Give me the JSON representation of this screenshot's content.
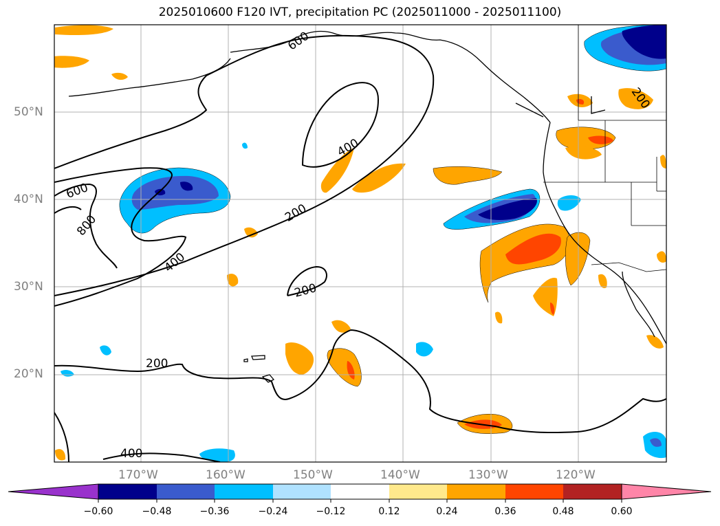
{
  "title": "2025010600 F120 IVT, precipitation PC (2025011000 - 2025011100)",
  "map": {
    "lat_labels": [
      "50°N",
      "40°N",
      "30°N",
      "20°N"
    ],
    "lon_labels": [
      "170°W",
      "160°W",
      "150°W",
      "140°W",
      "130°W",
      "120°W"
    ],
    "contour_labels": [
      "600",
      "800",
      "400",
      "400",
      "200",
      "200",
      "200",
      "400",
      "200",
      "600"
    ]
  },
  "colorbar": {
    "tick_labels": [
      "−0.60",
      "−0.48",
      "−0.36",
      "−0.24",
      "−0.12",
      "0.12",
      "0.24",
      "0.36",
      "0.48",
      "0.60"
    ],
    "colors": [
      "#9932cc",
      "#00008b",
      "#3a5bcd",
      "#00bfff",
      "#b0e2ff",
      "#ffffff",
      "#ffe98c",
      "#ffa500",
      "#ff4500",
      "#b22222",
      "#ff85a8"
    ]
  }
}
